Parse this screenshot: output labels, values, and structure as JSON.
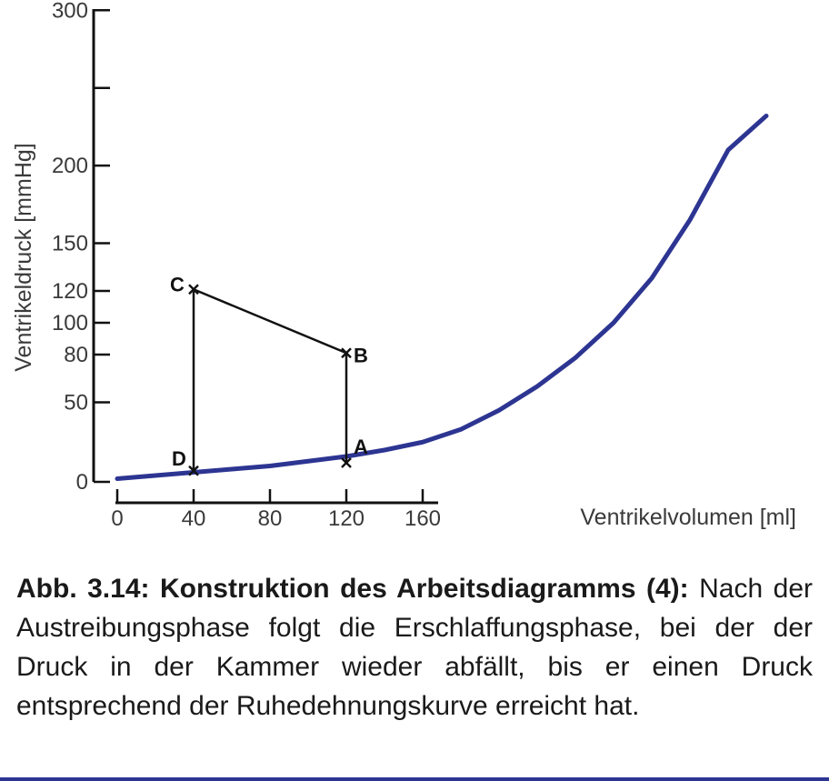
{
  "chart_data": {
    "type": "line",
    "xlabel": "Ventrikelvolumen [ml]",
    "ylabel": "Ventrikeldruck [mmHg]",
    "xlim": [
      0,
      350
    ],
    "ylim": [
      0,
      300
    ],
    "x_ticks": [
      0,
      40,
      80,
      120,
      160
    ],
    "y_ticks": [
      0,
      50,
      80,
      100,
      120,
      150,
      200,
      250,
      300
    ],
    "y_tick_labels": [
      "0",
      "50",
      "80",
      "100",
      "120",
      "150",
      "200",
      "",
      "300"
    ],
    "series": [
      {
        "color": "#2d3592",
        "x": [
          0,
          20,
          40,
          60,
          80,
          100,
          120,
          140,
          160,
          180,
          200,
          220,
          240,
          260,
          280,
          300,
          320,
          340
        ],
        "y": [
          2,
          4,
          6,
          8,
          10,
          13,
          16,
          20,
          25,
          33,
          45,
          60,
          78,
          100,
          128,
          165,
          210,
          232
        ]
      },
      {
        "color": "#111111",
        "x": [
          40,
          40,
          120,
          120
        ],
        "y": [
          7,
          121,
          81,
          12
        ]
      }
    ],
    "points": [
      {
        "label": "A",
        "x": 120,
        "y": 12
      },
      {
        "label": "B",
        "x": 120,
        "y": 81
      },
      {
        "label": "C",
        "x": 40,
        "y": 121
      },
      {
        "label": "D",
        "x": 40,
        "y": 7
      }
    ]
  },
  "caption": {
    "title": "Abb. 3.14: Konstruktion des Arbeitsdiagramms (4):",
    "text": "Nach der Austreibungsphase folgt die Erschlaffungsphase, bei der der Druck in der Kammer wieder abfällt, bis er einen Druck entsprechend der Ruhedehnungskurve erreicht hat."
  }
}
